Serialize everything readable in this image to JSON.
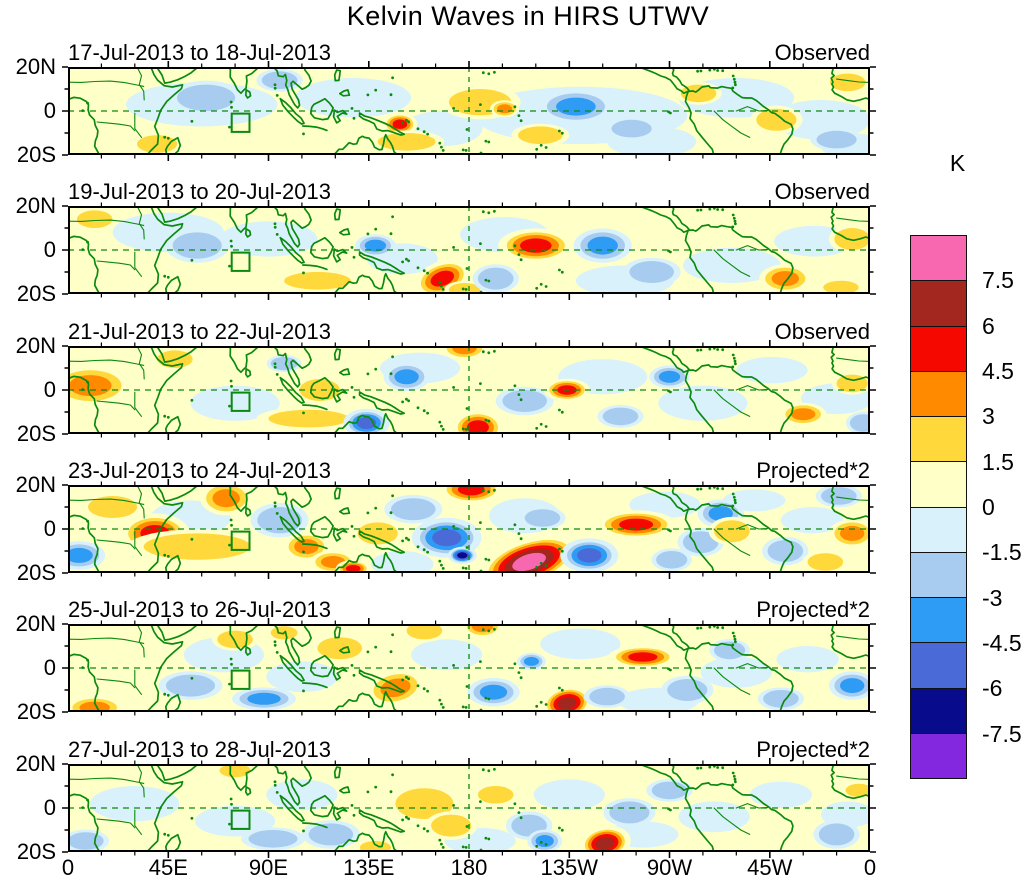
{
  "title": "Kelvin Waves in HIRS UTWV",
  "colorbar": {
    "unit_label": "K",
    "tick_labels": [
      "7.5",
      "6",
      "4.5",
      "3",
      "1.5",
      "0",
      "-1.5",
      "-3",
      "-4.5",
      "-6",
      "-7.5"
    ],
    "colors_top_to_bottom": [
      "#F768B1",
      "#A3271F",
      "#F50800",
      "#FF8A00",
      "#FFD83C",
      "#FFFFC8",
      "#D8F1FA",
      "#A8CCF0",
      "#2E9CF4",
      "#4A6AD8",
      "#070B8C",
      "#8428E0"
    ]
  },
  "x_axis": {
    "tick_labels": [
      "0",
      "45E",
      "90E",
      "135E",
      "180",
      "135W",
      "90W",
      "45W",
      "0"
    ]
  },
  "y_axis": {
    "tick_labels": [
      "20N",
      "0",
      "20S"
    ]
  },
  "map_style": {
    "coast_color": "#0b8a0f",
    "grid_color": "#0b8a0f",
    "land_fill": "none"
  },
  "chart_data": {
    "type": "heatmap",
    "subtype": "filled-contour longitude-latitude maps",
    "unit": "K",
    "contour_interval": 1.5,
    "contour_levels": [
      -7.5,
      -6,
      -4.5,
      -3,
      -1.5,
      0,
      1.5,
      3,
      4.5,
      6,
      7.5
    ],
    "lon_range": [
      0,
      360
    ],
    "lat_range": [
      -20,
      20
    ],
    "roi_box": {
      "lon_min": 73.5,
      "lon_max": 81.5,
      "lat_min": -9.5,
      "lat_max": -1.2
    },
    "feature_format": "[lon_east_deg, lat_deg, radius_lon_deg, radius_lat_deg, peak_level(+1=1.5-3K,+2=3-4.5K,+3=4.5-6K,+4=6-7.5K,+5=>7.5K; negative = cold anomalies), optional_rotation_deg]",
    "wash_format": "[lon, lat, radius_lon, radius_lat] weak negative (0 to -1.5 K) patches",
    "panels": [
      {
        "date_range": "17-Jul-2013 to 18-Jul-2013",
        "source_label": "Observed",
        "washes": [
          [
            60,
            3,
            34,
            10
          ],
          [
            128,
            6,
            26,
            9
          ],
          [
            168,
            -8,
            18,
            8
          ],
          [
            230,
            -2,
            48,
            13
          ],
          [
            262,
            -14,
            20,
            7
          ],
          [
            300,
            6,
            26,
            9
          ],
          [
            338,
            -4,
            22,
            9
          ],
          [
            352,
            -16,
            14,
            6
          ]
        ],
        "features": [
          [
            40,
            -15,
            9,
            4,
            1
          ],
          [
            62,
            6,
            13,
            6,
            -1
          ],
          [
            95,
            14,
            8,
            4,
            -1
          ],
          [
            149,
            -6,
            6,
            4,
            3
          ],
          [
            152,
            -14,
            13,
            4,
            1
          ],
          [
            185,
            4,
            14,
            6,
            1
          ],
          [
            196,
            1,
            5,
            3,
            2
          ],
          [
            212,
            -11,
            10,
            4,
            1
          ],
          [
            228,
            2,
            13,
            6,
            -2
          ],
          [
            253,
            -8,
            9,
            4,
            -1
          ],
          [
            283,
            8,
            8,
            4,
            1
          ],
          [
            318,
            -4,
            9,
            5,
            1
          ],
          [
            345,
            -13,
            9,
            4,
            -1
          ],
          [
            350,
            13,
            8,
            4,
            1
          ]
        ]
      },
      {
        "date_range": "19-Jul-2013 to 20-Jul-2013",
        "source_label": "Observed",
        "washes": [
          [
            45,
            8,
            25,
            9
          ],
          [
            90,
            5,
            22,
            8
          ],
          [
            150,
            -4,
            16,
            7
          ],
          [
            196,
            7,
            20,
            8
          ],
          [
            250,
            -14,
            22,
            7
          ],
          [
            298,
            -7,
            22,
            8
          ],
          [
            335,
            4,
            18,
            7
          ]
        ],
        "features": [
          [
            12,
            14,
            8,
            4,
            1
          ],
          [
            58,
            2,
            11,
            6,
            -1
          ],
          [
            112,
            -14,
            15,
            4,
            1
          ],
          [
            138,
            2,
            7,
            4,
            -2
          ],
          [
            168,
            -13,
            10,
            6,
            3,
            -20
          ],
          [
            178,
            -18,
            7,
            3,
            1
          ],
          [
            192,
            -13,
            8,
            5,
            -1
          ],
          [
            210,
            2,
            13,
            6,
            3
          ],
          [
            240,
            2,
            10,
            6,
            -2
          ],
          [
            262,
            -10,
            10,
            5,
            -1
          ],
          [
            322,
            -13,
            9,
            5,
            2
          ],
          [
            352,
            5,
            8,
            5,
            1
          ],
          [
            347,
            -17,
            8,
            3,
            1
          ]
        ]
      },
      {
        "date_range": "21-Jul-2013 to 22-Jul-2013",
        "source_label": "Observed",
        "washes": [
          [
            75,
            -6,
            20,
            8
          ],
          [
            158,
            10,
            18,
            7
          ],
          [
            240,
            6,
            20,
            8
          ],
          [
            285,
            -6,
            20,
            8
          ],
          [
            316,
            9,
            16,
            6
          ],
          [
            345,
            -4,
            16,
            7
          ]
        ],
        "features": [
          [
            10,
            2,
            14,
            7,
            2
          ],
          [
            48,
            14,
            8,
            4,
            1
          ],
          [
            113,
            0,
            9,
            5,
            1
          ],
          [
            108,
            -13,
            18,
            4,
            1
          ],
          [
            134,
            -15,
            8,
            5,
            -3
          ],
          [
            152,
            6,
            8,
            5,
            -2
          ],
          [
            97,
            12,
            6,
            3,
            -1
          ],
          [
            184,
            -17,
            9,
            6,
            3
          ],
          [
            178,
            19,
            8,
            4,
            2
          ],
          [
            205,
            -5,
            10,
            5,
            -1
          ],
          [
            224,
            0,
            8,
            4,
            3
          ],
          [
            248,
            -12,
            8,
            4,
            -1
          ],
          [
            270,
            6,
            7,
            4,
            -2
          ],
          [
            330,
            -11,
            8,
            4,
            2
          ],
          [
            352,
            3,
            7,
            4,
            1
          ],
          [
            357,
            -15,
            6,
            4,
            -1
          ]
        ]
      },
      {
        "date_range": "23-Jul-2013 to 24-Jul-2013",
        "source_label": "Projected*2",
        "washes": [
          [
            55,
            5,
            18,
            8
          ],
          [
            150,
            -16,
            14,
            6
          ],
          [
            205,
            6,
            16,
            8
          ],
          [
            268,
            11,
            16,
            6
          ],
          [
            308,
            13,
            14,
            5
          ],
          [
            334,
            4,
            14,
            6
          ]
        ],
        "features": [
          [
            5,
            -12,
            9,
            5,
            -2
          ],
          [
            20,
            10,
            11,
            5,
            1
          ],
          [
            39,
            -2,
            12,
            7,
            3
          ],
          [
            71,
            14,
            9,
            6,
            2
          ],
          [
            58,
            -8,
            24,
            6,
            1
          ],
          [
            95,
            4,
            10,
            6,
            -1
          ],
          [
            107,
            -8,
            8,
            5,
            2
          ],
          [
            119,
            -15,
            8,
            4,
            2
          ],
          [
            128,
            -18,
            6,
            3,
            3
          ],
          [
            139,
            -2,
            9,
            5,
            1
          ],
          [
            155,
            9,
            10,
            5,
            -1
          ],
          [
            170,
            -4,
            12,
            7,
            -3
          ],
          [
            177,
            -12,
            5,
            3,
            -4
          ],
          [
            181,
            18,
            11,
            5,
            3
          ],
          [
            207,
            -15,
            19,
            8.5,
            5,
            -18
          ],
          [
            213,
            5,
            8,
            4,
            -1
          ],
          [
            234,
            -12,
            10,
            6,
            -3
          ],
          [
            255,
            2,
            14,
            5,
            3
          ],
          [
            271,
            -14,
            7,
            4,
            -1
          ],
          [
            284,
            -6,
            8,
            5,
            -1
          ],
          [
            293,
            7,
            8,
            5,
            -2
          ],
          [
            298,
            -1,
            8,
            5,
            1
          ],
          [
            322,
            -10,
            8,
            5,
            -1
          ],
          [
            340,
            -15,
            8,
            4,
            1
          ],
          [
            352,
            -2,
            8,
            5,
            2
          ],
          [
            346,
            15,
            8,
            4,
            -1
          ]
        ]
      },
      {
        "date_range": "25-Jul-2013 to 26-Jul-2013",
        "source_label": "Projected*2",
        "washes": [
          [
            70,
            6,
            18,
            8
          ],
          [
            105,
            -4,
            16,
            7
          ],
          [
            170,
            6,
            16,
            7
          ],
          [
            230,
            11,
            18,
            7
          ],
          [
            265,
            -15,
            18,
            6
          ],
          [
            300,
            -2,
            16,
            7
          ],
          [
            332,
            4,
            14,
            6
          ]
        ],
        "features": [
          [
            12,
            -18,
            10,
            4,
            2
          ],
          [
            75,
            13,
            8,
            4,
            1
          ],
          [
            97,
            16,
            6,
            3,
            1
          ],
          [
            55,
            -8,
            11,
            5,
            -1
          ],
          [
            88,
            -14,
            11,
            4,
            -2
          ],
          [
            122,
            9,
            10,
            5,
            1
          ],
          [
            147,
            -9,
            10,
            6,
            2,
            -12
          ],
          [
            160,
            17,
            8,
            4,
            1
          ],
          [
            186,
            19,
            7,
            4,
            2
          ],
          [
            191,
            -11,
            9,
            5,
            -2
          ],
          [
            224,
            -16,
            9,
            6,
            4,
            -10
          ],
          [
            208,
            3,
            5,
            3,
            -2
          ],
          [
            258,
            5,
            12,
            4,
            3
          ],
          [
            242,
            -13,
            8,
            4,
            -1
          ],
          [
            278,
            -10,
            9,
            5,
            -1
          ],
          [
            297,
            8,
            7,
            4,
            -1
          ],
          [
            320,
            -14,
            8,
            4,
            -1
          ],
          [
            352,
            -8,
            8,
            5,
            -2
          ]
        ]
      },
      {
        "date_range": "27-Jul-2013 to 28-Jul-2013",
        "source_label": "Projected*2",
        "washes": [
          [
            30,
            2,
            20,
            8
          ],
          [
            75,
            -6,
            18,
            7
          ],
          [
            105,
            6,
            16,
            7
          ],
          [
            185,
            -15,
            16,
            6
          ],
          [
            225,
            6,
            16,
            7
          ],
          [
            258,
            -12,
            16,
            6
          ],
          [
            290,
            -4,
            16,
            7
          ],
          [
            320,
            6,
            14,
            6
          ],
          [
            350,
            -3,
            12,
            6
          ]
        ],
        "features": [
          [
            8,
            -15,
            8,
            4,
            -1
          ],
          [
            75,
            17,
            7,
            3,
            1
          ],
          [
            92,
            -14,
            11,
            4,
            -1
          ],
          [
            118,
            -12,
            10,
            5,
            -1
          ],
          [
            138,
            -18,
            7,
            3,
            1
          ],
          [
            160,
            2,
            13,
            7,
            1
          ],
          [
            172,
            -8,
            9,
            5,
            1
          ],
          [
            192,
            6,
            8,
            4,
            1
          ],
          [
            207,
            -8,
            8,
            5,
            -1
          ],
          [
            214,
            -15,
            6,
            4,
            -2
          ],
          [
            241,
            -16,
            9,
            6,
            4,
            -10
          ],
          [
            252,
            -2,
            9,
            5,
            -1
          ],
          [
            270,
            8,
            8,
            4,
            -1
          ],
          [
            345,
            -12,
            8,
            5,
            -1
          ],
          [
            355,
            8,
            6,
            3,
            1
          ]
        ]
      }
    ]
  }
}
